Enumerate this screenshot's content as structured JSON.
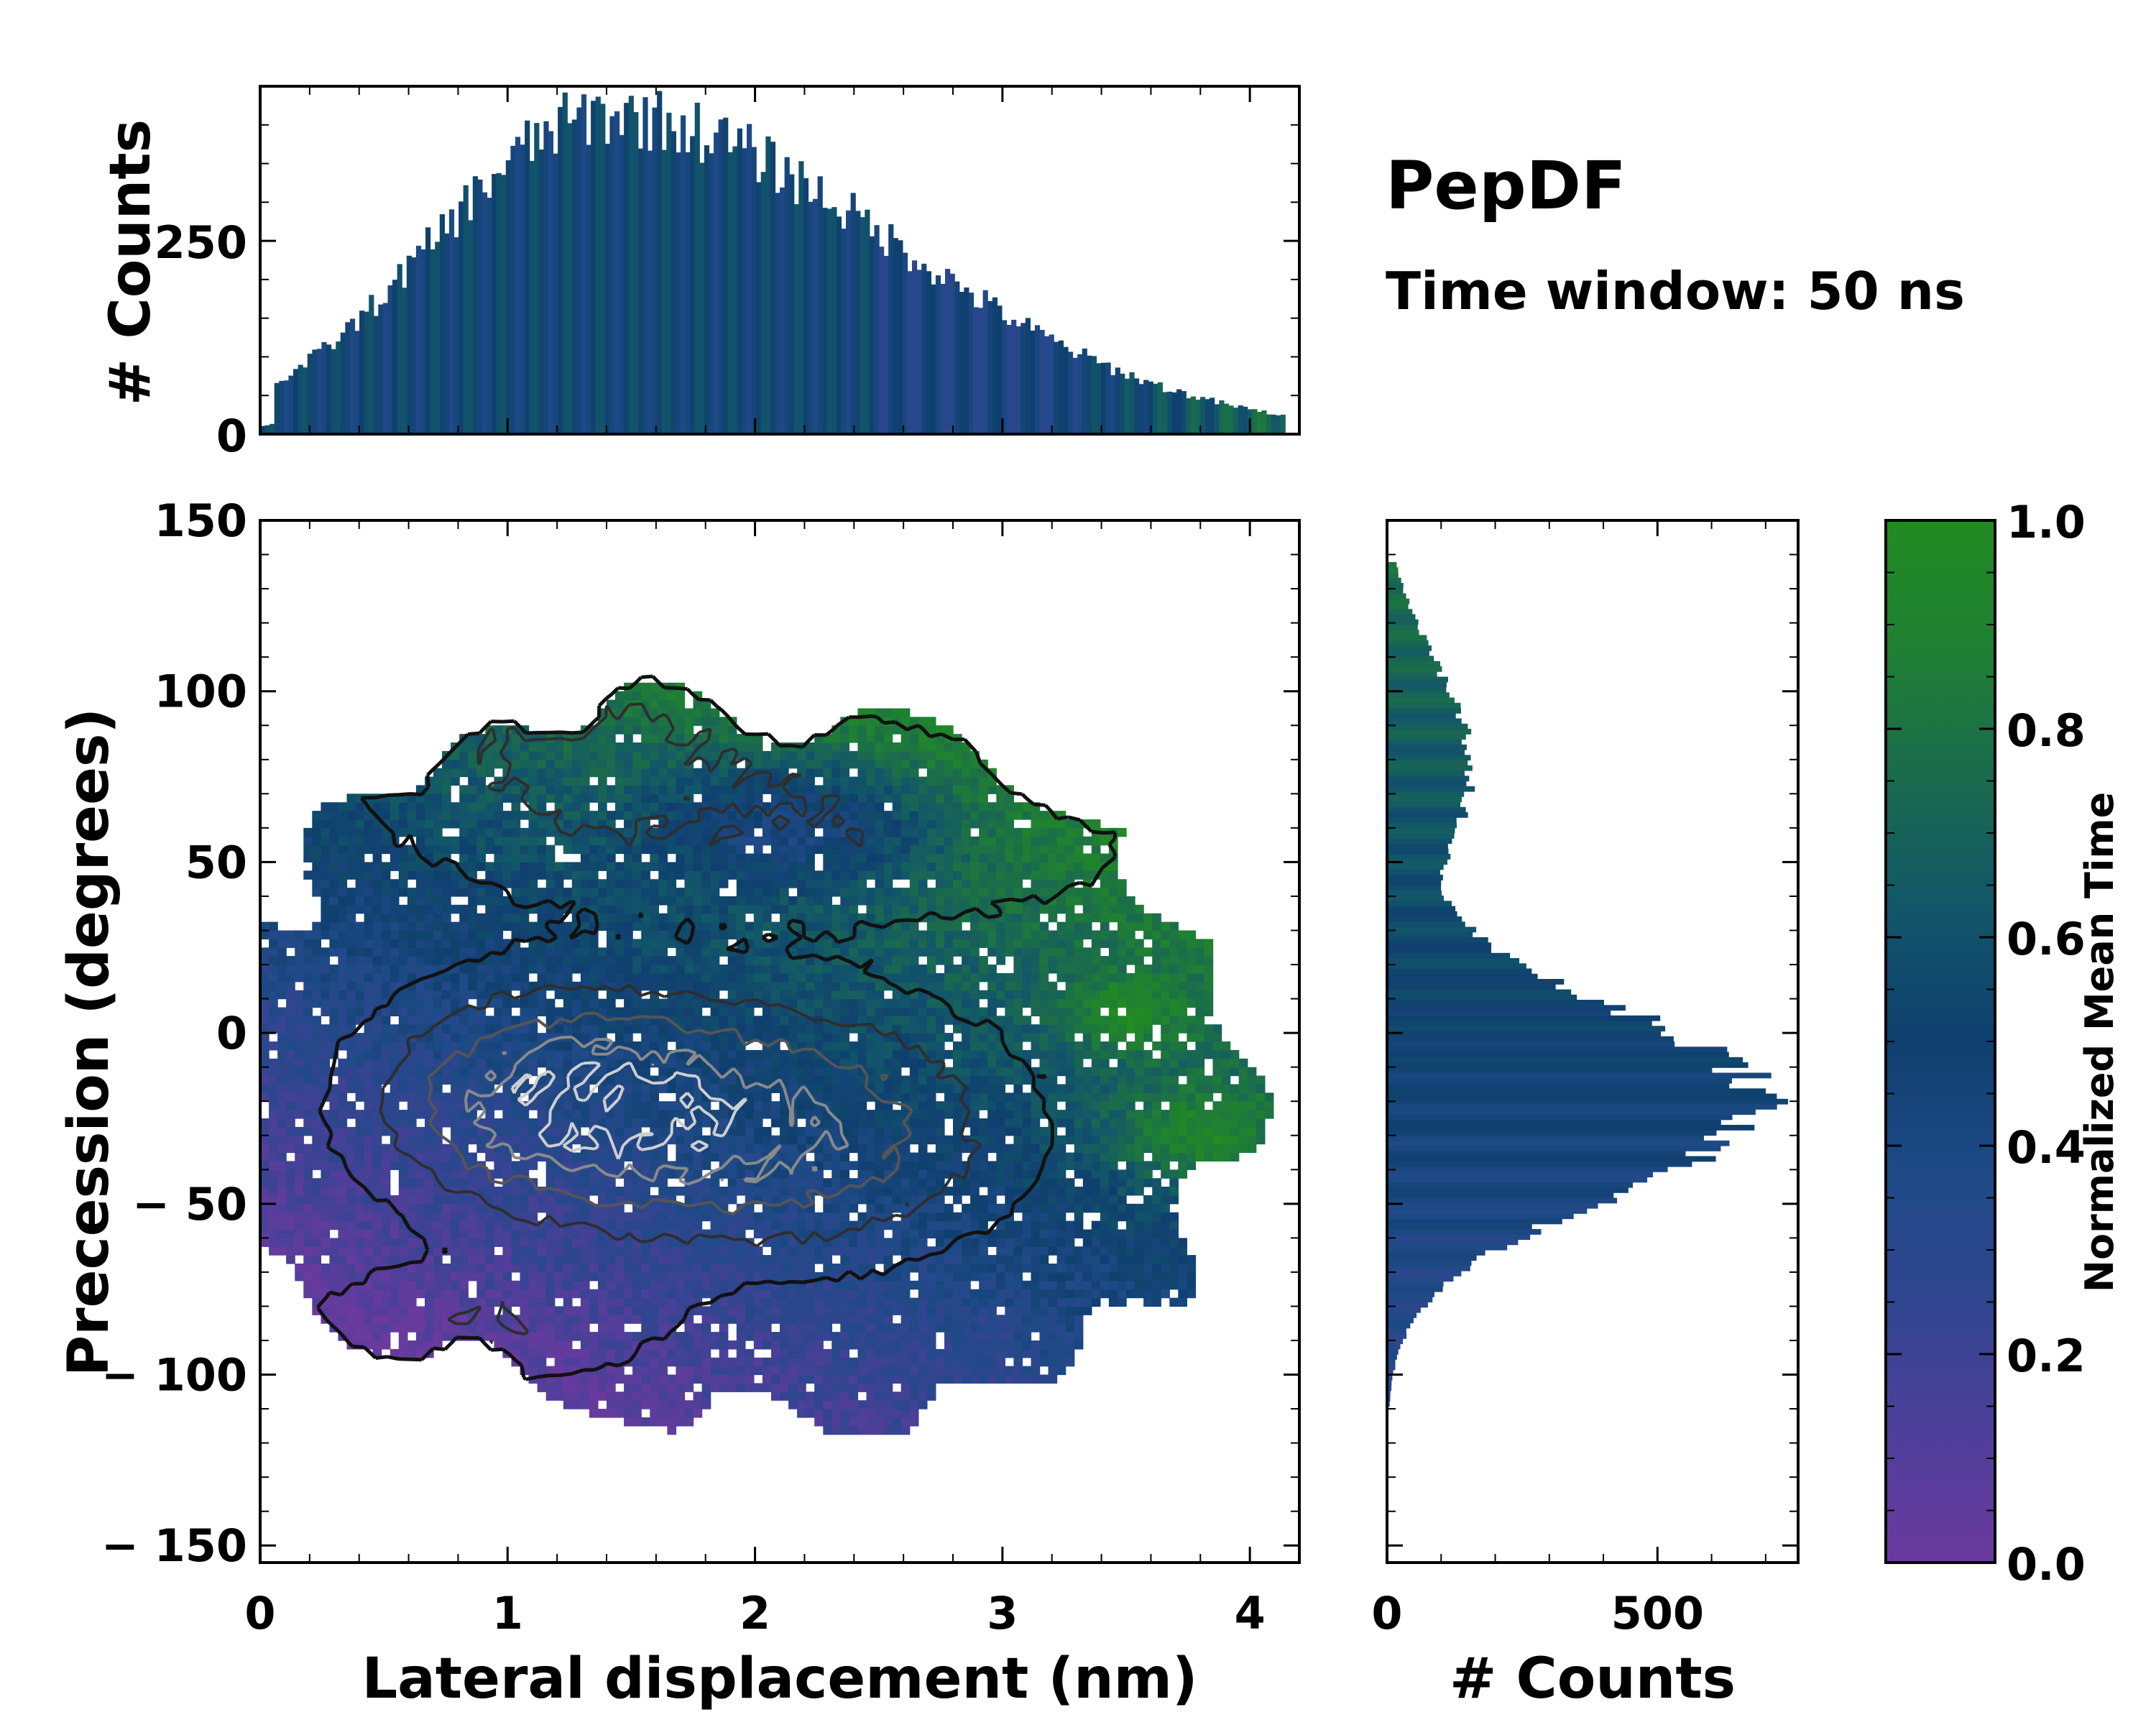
{
  "title": "PepDF",
  "subtitle": "Time window: 50 ns",
  "colors": {
    "cmap": [
      "#6a3a9e",
      "#4f3f9a",
      "#30458f",
      "#1e4a86",
      "#0f3f6e",
      "#12556a",
      "#1a6a4e",
      "#1f7f33",
      "#228b22"
    ]
  },
  "chart_data": [
    {
      "type": "histogram2d",
      "name": "joint",
      "xlabel": "Lateral displacement (nm)",
      "ylabel": "Precession (degrees)",
      "xlim": [
        0,
        4.2
      ],
      "ylim": [
        -155,
        150
      ],
      "xticks": [
        0,
        1,
        2,
        3,
        4
      ],
      "yticks": [
        150,
        100,
        50,
        0,
        -50,
        -100,
        -150
      ],
      "ytick_labels": [
        "150",
        "100",
        "50",
        "0",
        "− 50",
        "− 100",
        "− 150"
      ],
      "xtick_labels": [
        "0",
        "1",
        "2",
        "3",
        "4"
      ],
      "clusters": [
        {
          "x": 1.2,
          "y": -20,
          "sx": 0.45,
          "sy": 20,
          "w": 1.0
        },
        {
          "x": 2.1,
          "y": -28,
          "sx": 0.55,
          "sy": 22,
          "w": 0.85
        },
        {
          "x": 1.3,
          "y": 80,
          "sx": 0.6,
          "sy": 25,
          "w": 0.35
        },
        {
          "x": 2.6,
          "y": 60,
          "sx": 0.7,
          "sy": 20,
          "w": 0.25
        },
        {
          "x": 0.9,
          "y": -85,
          "sx": 0.5,
          "sy": 12,
          "w": 0.3
        }
      ],
      "contour_levels": [
        0.08,
        0.22,
        0.4,
        0.6,
        0.8
      ],
      "contour_colors": [
        "#111111",
        "#2e2e2e",
        "#555555",
        "#8a8a8a",
        "#cfcfcf"
      ]
    },
    {
      "type": "bar",
      "name": "top-marginal",
      "ylabel": "# Counts",
      "ylim": [
        0,
        450
      ],
      "yticks": [
        0,
        250
      ],
      "xlim": [
        0,
        4.2
      ],
      "x_peak_nm": 1.4,
      "peak_counts": 430,
      "nonzero_range_nm": [
        0.0,
        4.15
      ]
    },
    {
      "type": "bar",
      "name": "right-marginal",
      "xlabel": "# Counts",
      "xlim": [
        0,
        760
      ],
      "xticks": [
        0,
        500
      ],
      "ylim": [
        -155,
        150
      ],
      "y_peak_deg": -20,
      "peak_counts": 700,
      "secondary_peak_deg": 75,
      "secondary_peak_counts": 150
    },
    {
      "type": "colorbar",
      "name": "colorbar",
      "label": "Normalized Mean Time",
      "range": [
        0.0,
        1.0
      ],
      "ticks": [
        0.0,
        0.2,
        0.4,
        0.6,
        0.8,
        1.0
      ],
      "tick_labels": [
        "0.0",
        "0.2",
        "0.4",
        "0.6",
        "0.8",
        "1.0"
      ]
    }
  ]
}
